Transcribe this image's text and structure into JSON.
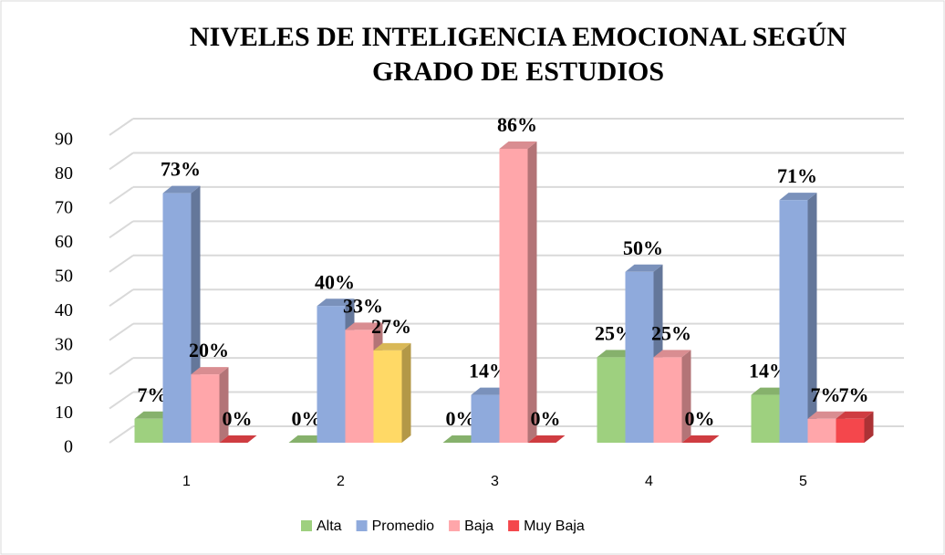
{
  "chart_data": {
    "type": "bar3d",
    "title": "NIVELES DE INTELIGENCIA EMOCIONAL SEGÚN GRADO DE ESTUDIOS",
    "categories": [
      "1",
      "2",
      "3",
      "4",
      "5"
    ],
    "series": [
      {
        "name": "Alta",
        "color": "#9ed07f",
        "values": [
          7,
          0,
          0,
          25,
          14
        ],
        "value_labels": [
          "7%",
          "0%",
          "0%",
          "25%",
          "14%"
        ]
      },
      {
        "name": "Promedio",
        "color": "#8faadc",
        "values": [
          73,
          40,
          14,
          50,
          71
        ],
        "value_labels": [
          "73%",
          "40%",
          "14%",
          "50%",
          "71%"
        ]
      },
      {
        "name": "Baja",
        "color": "#ffa6aa",
        "values": [
          20,
          33,
          86,
          25,
          7
        ],
        "value_labels": [
          "20%",
          "33%",
          "86%",
          "25%",
          "7%"
        ]
      },
      {
        "name": "Muy Baja",
        "color": "#f4474c",
        "colors": [
          "#f4474c",
          "#ffd966",
          "#f4474c",
          "#f4474c",
          "#f4474c"
        ],
        "values": [
          0,
          27,
          0,
          0,
          7
        ],
        "value_labels": [
          "0%",
          "27%",
          "0%",
          "0%",
          "7%"
        ]
      }
    ],
    "ylim": [
      0,
      90
    ],
    "yticks": [
      0,
      10,
      20,
      30,
      40,
      50,
      60,
      70,
      80,
      90
    ],
    "grid": true,
    "legend": "bottom"
  }
}
